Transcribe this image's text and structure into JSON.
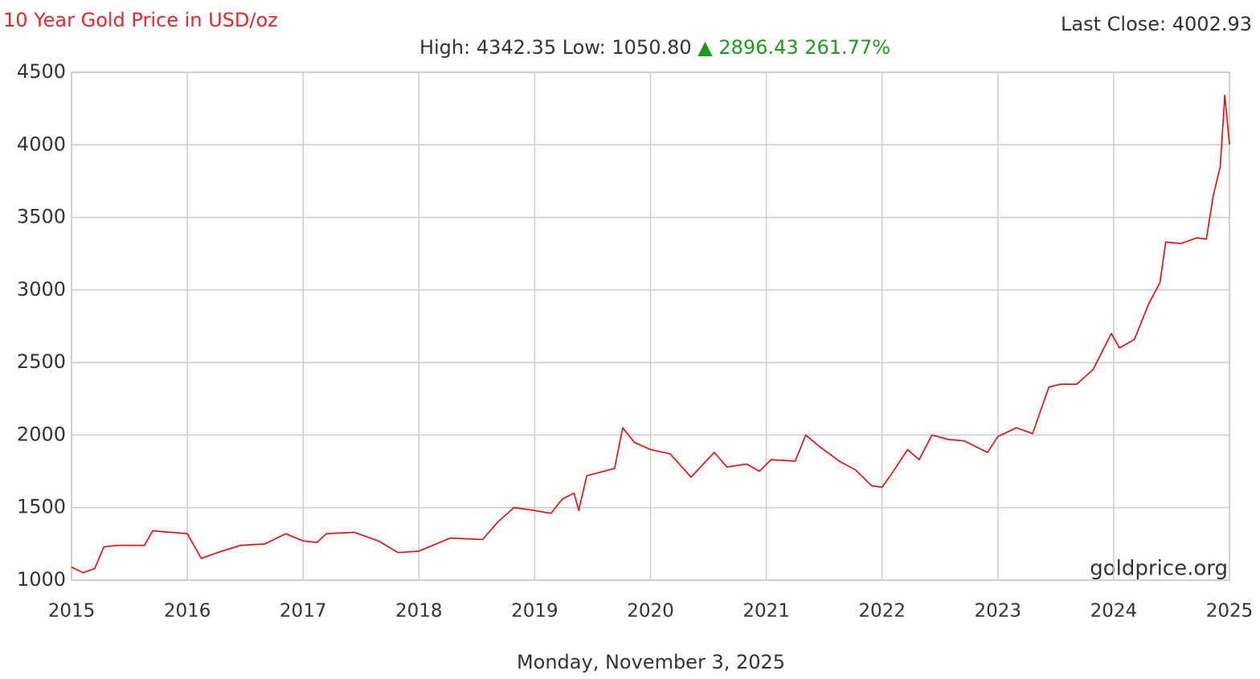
{
  "chart_data": {
    "type": "line",
    "title": "10 Year Gold Price in USD/oz",
    "last_close": "Last Close: 4002.93",
    "high_low": "High: 4342.35 Low: 1050.80",
    "change": "▲ 2896.43 261.77%",
    "watermark": "goldprice.org",
    "date": "Monday, November 3, 2025",
    "xlim": [
      2015,
      2025
    ],
    "xticks": [
      2015,
      2016,
      2017,
      2018,
      2019,
      2020,
      2021,
      2022,
      2023,
      2024,
      2025
    ],
    "ylim": [
      1000,
      4500
    ],
    "yticks": [
      1000,
      1500,
      2000,
      2500,
      3000,
      3500,
      4000,
      4500
    ],
    "grid": true,
    "series": [
      {
        "name": "Gold Price",
        "color": "#ff0000",
        "x": [
          2015,
          2015.1,
          2015.2,
          2015.28,
          2015.4,
          2015.63,
          2015.7,
          2016.0,
          2016.12,
          2016.26,
          2016.46,
          2016.67,
          2016.85,
          2017.0,
          2017.12,
          2017.2,
          2017.44,
          2017.65,
          2017.82,
          2018.0,
          2018.27,
          2018.55,
          2018.68,
          2018.82,
          2019.0,
          2019.14,
          2019.24,
          2019.34,
          2019.38,
          2019.45,
          2019.69,
          2019.76,
          2019.86,
          2020.0,
          2020.17,
          2020.35,
          2020.55,
          2020.66,
          2020.83,
          2020.94,
          2021.04,
          2021.25,
          2021.34,
          2021.46,
          2021.63,
          2021.77,
          2021.91,
          2022.0,
          2022.08,
          2022.22,
          2022.32,
          2022.43,
          2022.57,
          2022.71,
          2022.91,
          2023.0,
          2023.16,
          2023.3,
          2023.44,
          2023.54,
          2023.68,
          2023.82,
          2023.98,
          2024.05,
          2024.18,
          2024.3,
          2024.4,
          2024.45,
          2024.58,
          2024.72,
          2024.8,
          2024.86,
          2024.92,
          2024.96,
          2025.0
        ],
        "values": [
          1090,
          1050.8,
          1080,
          1230,
          1240,
          1240,
          1340,
          1320,
          1150,
          1190,
          1240,
          1250,
          1320,
          1270,
          1260,
          1320,
          1330,
          1270,
          1190,
          1200,
          1290,
          1280,
          1400,
          1500,
          1480,
          1460,
          1560,
          1600,
          1480,
          1720,
          1770,
          2050,
          1950,
          1900,
          1870,
          1710,
          1880,
          1780,
          1800,
          1750,
          1830,
          1820,
          2000,
          1920,
          1820,
          1760,
          1650,
          1640,
          1730,
          1900,
          1830,
          2000,
          1970,
          1960,
          1880,
          1990,
          2050,
          2010,
          2330,
          2350,
          2350,
          2450,
          2700,
          2600,
          2660,
          2900,
          3050,
          3330,
          3320,
          3360,
          3350,
          3650,
          3850,
          4342.35,
          4002.93
        ]
      }
    ]
  }
}
